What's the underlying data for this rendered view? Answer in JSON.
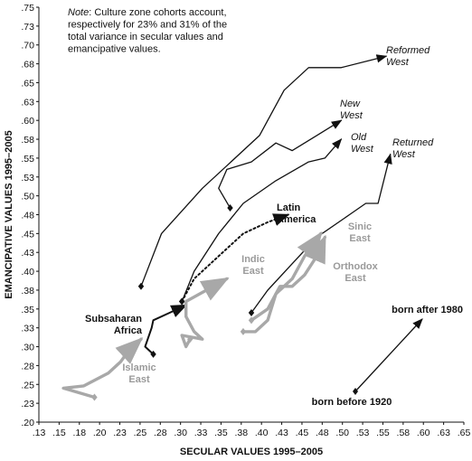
{
  "chart_data": {
    "type": "line",
    "xlabel": "SECULAR VALUES 1995–2005",
    "ylabel": "EMANCIPATIVE VALUES 1995–2005",
    "xlim": [
      0.13,
      0.65
    ],
    "ylim": [
      0.2,
      0.75
    ],
    "x_ticks": [
      ".13",
      ".15",
      ".18",
      ".20",
      ".23",
      ".25",
      ".28",
      ".30",
      ".33",
      ".35",
      ".38",
      ".40",
      ".43",
      ".45",
      ".48",
      ".50",
      ".53",
      ".55",
      ".58",
      ".60",
      ".63",
      ".65"
    ],
    "y_ticks": [
      ".20",
      ".23",
      ".25",
      ".28",
      ".30",
      ".33",
      ".35",
      ".38",
      ".40",
      ".43",
      ".45",
      ".48",
      ".50",
      ".53",
      ".55",
      ".58",
      ".60",
      ".63",
      ".65",
      ".68",
      ".70",
      ".73",
      ".75"
    ],
    "note": {
      "prefix": "Note",
      "lines": [
        ": Culture zone cohorts account,",
        "respectively for 23% and 31% of the",
        "total variance in secular values and",
        "emancipative values."
      ]
    },
    "legend": {
      "newest": "born after 1980",
      "oldest": "born before 1920"
    },
    "series": [
      {
        "name": "Reformed West",
        "label_lines": [
          "Reformed",
          "West"
        ],
        "style": "italic",
        "color": "#111111",
        "points": [
          [
            0.255,
            0.38
          ],
          [
            0.28,
            0.45
          ],
          [
            0.33,
            0.51
          ],
          [
            0.36,
            0.54
          ],
          [
            0.4,
            0.58
          ],
          [
            0.43,
            0.64
          ],
          [
            0.46,
            0.67
          ],
          [
            0.5,
            0.67
          ],
          [
            0.555,
            0.685
          ]
        ]
      },
      {
        "name": "New West",
        "label_lines": [
          "New",
          "West"
        ],
        "style": "italic",
        "color": "#111111",
        "points": [
          [
            0.364,
            0.484
          ],
          [
            0.35,
            0.51
          ],
          [
            0.36,
            0.535
          ],
          [
            0.39,
            0.545
          ],
          [
            0.42,
            0.57
          ],
          [
            0.44,
            0.56
          ],
          [
            0.47,
            0.58
          ],
          [
            0.5,
            0.6
          ]
        ]
      },
      {
        "name": "Old West",
        "label_lines": [
          "Old",
          "West"
        ],
        "style": "italic",
        "color": "#111111",
        "points": [
          [
            0.305,
            0.36
          ],
          [
            0.32,
            0.4
          ],
          [
            0.35,
            0.45
          ],
          [
            0.38,
            0.49
          ],
          [
            0.42,
            0.52
          ],
          [
            0.46,
            0.545
          ],
          [
            0.48,
            0.55
          ],
          [
            0.5,
            0.575
          ]
        ]
      },
      {
        "name": "Returned West",
        "label_lines": [
          "Returned",
          "West"
        ],
        "style": "italic",
        "color": "#111111",
        "points": [
          [
            0.39,
            0.345
          ],
          [
            0.41,
            0.375
          ],
          [
            0.44,
            0.41
          ],
          [
            0.47,
            0.445
          ],
          [
            0.51,
            0.475
          ],
          [
            0.53,
            0.49
          ],
          [
            0.545,
            0.49
          ],
          [
            0.56,
            0.555
          ]
        ]
      },
      {
        "name": "Latin America",
        "label_lines": [
          "Latin",
          "America"
        ],
        "style": "bold",
        "color": "#111111",
        "dotted": true,
        "points": [
          [
            0.305,
            0.36
          ],
          [
            0.32,
            0.39
          ],
          [
            0.35,
            0.42
          ],
          [
            0.38,
            0.45
          ],
          [
            0.41,
            0.465
          ],
          [
            0.435,
            0.475
          ]
        ]
      },
      {
        "name": "Subsaharan Africa",
        "label_lines": [
          "Subsaharan",
          "Africa"
        ],
        "style": "bold",
        "color": "#111111",
        "points": [
          [
            0.27,
            0.29
          ],
          [
            0.26,
            0.3
          ],
          [
            0.268,
            0.325
          ],
          [
            0.27,
            0.335
          ],
          [
            0.29,
            0.345
          ],
          [
            0.31,
            0.355
          ]
        ]
      },
      {
        "name": "Islamic East",
        "label_lines": [
          "Islamic",
          "East"
        ],
        "style": "gray",
        "color": "#a8a8a8",
        "points": [
          [
            0.198,
            0.233
          ],
          [
            0.16,
            0.245
          ],
          [
            0.185,
            0.248
          ],
          [
            0.215,
            0.265
          ],
          [
            0.23,
            0.28
          ],
          [
            0.24,
            0.295
          ],
          [
            0.255,
            0.31
          ]
        ]
      },
      {
        "name": "Indic East",
        "label_lines": [
          "Indic",
          "East"
        ],
        "style": "gray",
        "color": "#a8a8a8",
        "points": [
          [
            0.315,
            0.31
          ],
          [
            0.31,
            0.3
          ],
          [
            0.305,
            0.315
          ],
          [
            0.33,
            0.31
          ],
          [
            0.32,
            0.32
          ],
          [
            0.31,
            0.34
          ],
          [
            0.31,
            0.36
          ],
          [
            0.335,
            0.375
          ],
          [
            0.36,
            0.39
          ]
        ]
      },
      {
        "name": "Sinic East",
        "label_lines": [
          "Sinic",
          "East"
        ],
        "style": "gray",
        "color": "#a8a8a8",
        "points": [
          [
            0.38,
            0.32
          ],
          [
            0.395,
            0.32
          ],
          [
            0.41,
            0.335
          ],
          [
            0.42,
            0.37
          ],
          [
            0.44,
            0.39
          ],
          [
            0.455,
            0.42
          ],
          [
            0.475,
            0.45
          ]
        ]
      },
      {
        "name": "Orthodox East",
        "label_lines": [
          "Orthodox",
          "East"
        ],
        "style": "gray",
        "color": "#a8a8a8",
        "points": [
          [
            0.39,
            0.335
          ],
          [
            0.41,
            0.35
          ],
          [
            0.425,
            0.38
          ],
          [
            0.44,
            0.38
          ],
          [
            0.455,
            0.395
          ],
          [
            0.47,
            0.42
          ],
          [
            0.48,
            0.445
          ]
        ]
      }
    ]
  }
}
